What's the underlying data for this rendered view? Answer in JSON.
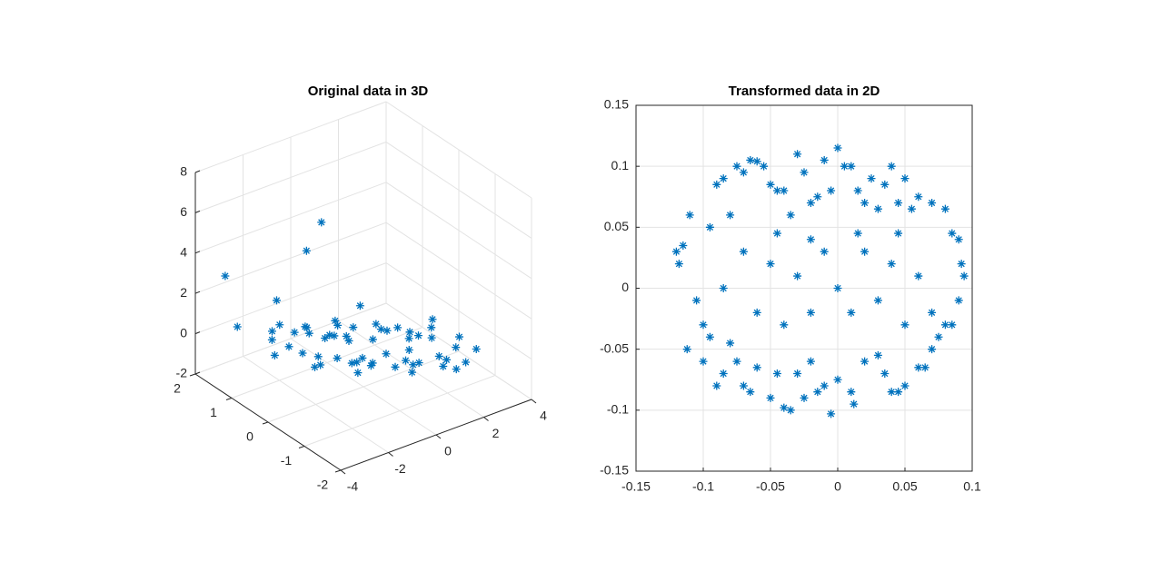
{
  "chart_data": [
    {
      "type": "scatter3d",
      "title": "Original data in 3D",
      "color": "#0072bd",
      "grid": true,
      "xlim": [
        -4,
        4
      ],
      "ylim": [
        -2,
        2
      ],
      "zlim": [
        -2,
        8
      ],
      "xticks": [
        -4,
        -2,
        0,
        2,
        4
      ],
      "yticks": [
        -2,
        -1,
        0,
        1,
        2
      ],
      "zticks": [
        -2,
        0,
        2,
        4,
        6,
        8
      ],
      "x": [
        -3,
        -2.5,
        -2.8,
        -2,
        -1.5,
        -1.8,
        -1,
        -0.5,
        -1.2,
        0,
        0.5,
        0.3,
        1,
        1.5,
        1.2,
        2,
        2.5,
        2.2,
        3,
        2.8,
        -2.2,
        -1.7,
        -0.8,
        -0.2,
        0.4,
        0.9,
        1.7,
        2.4,
        -2.6,
        -1.3,
        -0.6,
        0.1,
        0.7,
        1.3,
        1.9,
        2.6,
        -1.9,
        -1.1,
        -0.3,
        0.6,
        1.1,
        1.8,
        -2.4,
        -0.9,
        0.2,
        1.4,
        2.1,
        -1.6,
        -0.4,
        0.8,
        1.6,
        -0.7,
        0.3,
        1,
        -1.4,
        2.3,
        -2.9,
        3.2,
        -1,
        -0.1
      ],
      "y": [
        1.5,
        0.8,
        -0.5,
        1.2,
        0.2,
        -1,
        0.9,
        -0.3,
        1.6,
        0.4,
        -1.2,
        1,
        -0.6,
        0.5,
        -1.5,
        -0.2,
        0.7,
        -1.1,
        0.1,
        -0.8,
        -0.2,
        1.4,
        -1.4,
        0.8,
        -0.9,
        1.3,
        -1.7,
        0.3,
        0.6,
        -0.7,
        1.1,
        -1.3,
        0.2,
        -0.4,
        0.9,
        -1.4,
        -1.5,
        0,
        1.7,
        -1.8,
        1.5,
        -0.9,
        0.1,
        -0.8,
        0.6,
        1.2,
        -0.5,
        1,
        -1.6,
        -0.1,
        0.4,
        0.6,
        1.8,
        -1.9,
        -0.6,
        1.6,
        1.9,
        0.2,
        0.5,
        1.5
      ],
      "z": [
        0.5,
        -0.3,
        0.8,
        0.2,
        -0.5,
        1.2,
        0.3,
        0,
        0.9,
        -0.2,
        0.4,
        -0.8,
        0.1,
        -0.4,
        0.6,
        -0.1,
        -1,
        0.3,
        -0.5,
        0.2,
        0.7,
        -0.6,
        1,
        -0.3,
        0.2,
        -0.9,
        0.5,
        -0.7,
        1.5,
        0.1,
        -0.4,
        0.6,
        -0.2,
        0.3,
        -0.8,
        0.4,
        1.8,
        -0.1,
        -1.2,
        0.9,
        -1,
        -0.2,
        0.6,
        0.4,
        -0.3,
        -1.1,
        0.1,
        -0.5,
        0.8,
        -0.6,
        -0.4,
        0,
        -1.3,
        0.7,
        0.5,
        -0.9,
        2.5,
        -0.3,
        6,
        3
      ]
    },
    {
      "type": "scatter",
      "title": "Transformed data in 2D",
      "color": "#0072bd",
      "grid": true,
      "xlim": [
        -0.15,
        0.1
      ],
      "ylim": [
        -0.15,
        0.15
      ],
      "xticks": [
        -0.15,
        -0.1,
        -0.05,
        0,
        0.05,
        0.1
      ],
      "yticks": [
        -0.15,
        -0.1,
        -0.05,
        0,
        0.05,
        0.1,
        0.15
      ],
      "x": [
        -0.12,
        -0.118,
        -0.115,
        -0.11,
        -0.105,
        -0.112,
        -0.1,
        -0.095,
        -0.09,
        -0.085,
        -0.08,
        -0.075,
        -0.07,
        -0.065,
        -0.06,
        -0.055,
        -0.05,
        -0.045,
        -0.04,
        -0.035,
        -0.03,
        -0.025,
        -0.02,
        -0.015,
        -0.01,
        -0.005,
        0,
        0.005,
        0.01,
        0.015,
        0.02,
        0.025,
        0.03,
        0.035,
        0.04,
        0.045,
        0.05,
        0.055,
        0.06,
        0.07,
        0.08,
        0.085,
        0.09,
        0.092,
        0.094,
        0.09,
        0.085,
        0.08,
        0.075,
        0.07,
        0.065,
        0.06,
        0.05,
        0.045,
        0.04,
        0.035,
        0.03,
        0.02,
        0.012,
        0.01,
        0,
        -0.005,
        -0.01,
        -0.015,
        -0.02,
        -0.025,
        -0.03,
        -0.035,
        -0.04,
        -0.045,
        -0.05,
        -0.06,
        -0.065,
        -0.07,
        -0.075,
        -0.08,
        -0.085,
        -0.09,
        -0.095,
        -0.1,
        -0.085,
        -0.07,
        -0.06,
        -0.05,
        -0.04,
        -0.03,
        -0.02,
        -0.01,
        0,
        0.01,
        0.02,
        0.03,
        0.04,
        0.05,
        0.06,
        0.07,
        -0.02,
        0.015,
        -0.045,
        0.045
      ],
      "y": [
        0.03,
        0.02,
        0.035,
        0.06,
        -0.01,
        -0.05,
        -0.06,
        0.05,
        0.085,
        0.09,
        0.06,
        0.1,
        0.095,
        0.105,
        0.104,
        0.1,
        0.085,
        0.08,
        0.08,
        0.06,
        0.11,
        0.095,
        0.07,
        0.075,
        0.105,
        0.08,
        0.115,
        0.1,
        0.1,
        0.08,
        0.07,
        0.09,
        0.065,
        0.085,
        0.1,
        0.07,
        0.09,
        0.065,
        0.075,
        0.07,
        0.065,
        0.045,
        0.04,
        0.02,
        0.01,
        -0.01,
        -0.03,
        -0.03,
        -0.04,
        -0.05,
        -0.065,
        -0.065,
        -0.08,
        -0.085,
        -0.085,
        -0.07,
        -0.055,
        -0.06,
        -0.095,
        -0.085,
        -0.075,
        -0.103,
        -0.08,
        -0.085,
        -0.06,
        -0.09,
        -0.07,
        -0.1,
        -0.098,
        -0.07,
        -0.09,
        -0.065,
        -0.085,
        -0.08,
        -0.06,
        -0.045,
        -0.07,
        -0.08,
        -0.04,
        -0.03,
        0,
        0.03,
        -0.02,
        0.02,
        -0.03,
        0.01,
        -0.02,
        0.03,
        0,
        -0.02,
        0.03,
        -0.01,
        0.02,
        -0.03,
        0.01,
        -0.02,
        0.04,
        0.045,
        0.045,
        0.045
      ]
    }
  ]
}
